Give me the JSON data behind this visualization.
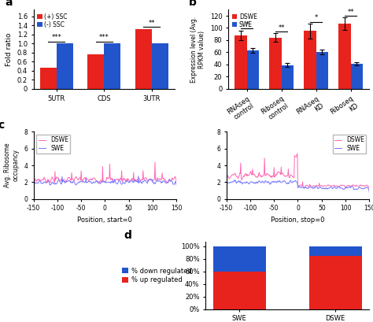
{
  "panel_a": {
    "categories": [
      "5UTR",
      "CDS",
      "3UTR"
    ],
    "plus_ssc": [
      0.46,
      0.77,
      1.32
    ],
    "minus_ssc": [
      1.0,
      1.0,
      1.0
    ],
    "plus_color": "#e8231e",
    "minus_color": "#2255cc",
    "yticks": [
      0.0,
      0.2,
      0.4,
      0.6,
      0.8,
      1.0,
      1.2,
      1.4,
      1.6
    ],
    "ylim": [
      0,
      1.75
    ],
    "ylabel": "Fold ratio",
    "significance": [
      "***",
      "***",
      "**"
    ]
  },
  "panel_b": {
    "categories": [
      "RNAseq\ncontrol",
      "Riboseq\ncontrol",
      "RNAseq\nKD",
      "Riboseq\nKD"
    ],
    "dswe": [
      88,
      84,
      95,
      107
    ],
    "swe": [
      63,
      39,
      61,
      41
    ],
    "dswe_err": [
      8,
      7,
      12,
      10
    ],
    "swe_err": [
      4,
      3,
      4,
      3
    ],
    "dswe_color": "#e8231e",
    "swe_color": "#2255cc",
    "ylim": [
      0,
      130
    ],
    "yticks": [
      0,
      20,
      40,
      60,
      80,
      100,
      120
    ],
    "ylabel": "Expression level (Avg.\nRPKM value)",
    "significance": [
      "*",
      "**",
      "*",
      "**"
    ]
  },
  "panel_c_left": {
    "dswe_color": "#ff69b4",
    "swe_color": "#7777ff",
    "xlabel": "Position, start=0",
    "ylabel": "Avg. Ribosome\noccupancy",
    "xlim": [
      -150,
      150
    ],
    "ylim": [
      0,
      8
    ],
    "yticks": [
      0,
      2,
      4,
      6,
      8
    ]
  },
  "panel_c_right": {
    "dswe_color": "#ff69b4",
    "swe_color": "#7777ff",
    "xlabel": "Position, stop=0",
    "xlim": [
      -150,
      150
    ],
    "ylim": [
      0,
      8
    ],
    "yticks": [
      0,
      2,
      4,
      6,
      8
    ]
  },
  "panel_d": {
    "categories": [
      "SWE",
      "DSWE"
    ],
    "up_regulated": [
      60,
      84
    ],
    "down_regulated": [
      40,
      16
    ],
    "up_color": "#e8231e",
    "down_color": "#2255cc",
    "yticks": [
      0,
      20,
      40,
      60,
      80,
      100
    ],
    "yticklabels": [
      "0%",
      "20%",
      "40%",
      "60%",
      "80%",
      "100%"
    ],
    "legend_labels": [
      "% down regulated",
      "% up regulated"
    ]
  }
}
